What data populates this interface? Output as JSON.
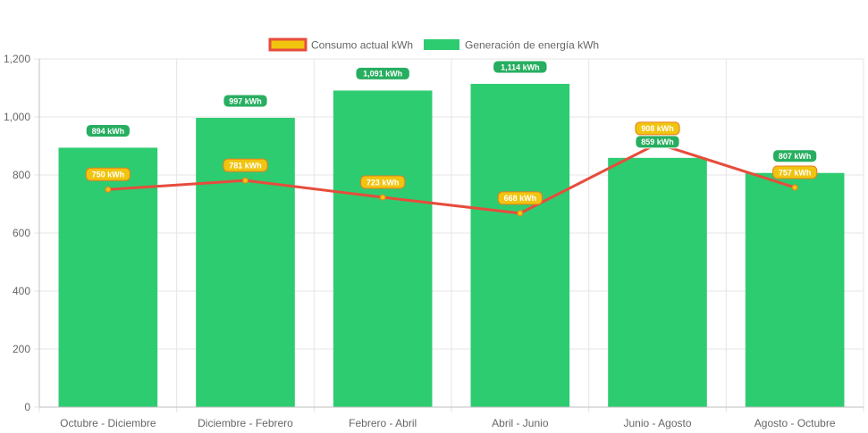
{
  "chart_data": {
    "type": "bar",
    "categories": [
      "Octubre - Diciembre",
      "Diciembre - Febrero",
      "Febrero - Abril",
      "Abril - Junio",
      "Junio - Agosto",
      "Agosto - Octubre"
    ],
    "series": [
      {
        "name": "Consumo actual kWh",
        "type": "line",
        "values": [
          750,
          781,
          723,
          668,
          908,
          757
        ],
        "labels": [
          "750 kWh",
          "781 kWh",
          "723 kWh",
          "668 kWh",
          "908 kWh",
          "757 kWh"
        ],
        "color": "#e74c3c",
        "fill": "#f1c40f"
      },
      {
        "name": "Generación de energía kWh",
        "type": "bar",
        "values": [
          894,
          997,
          1091,
          1114,
          859,
          807
        ],
        "labels": [
          "894 kWh",
          "997 kWh",
          "1,091 kWh",
          "1,114 kWh",
          "859 kWh",
          "807 kWh"
        ],
        "color": "#2ecc71"
      }
    ],
    "ylim": [
      0,
      1200
    ],
    "yticks": [
      "0",
      "200",
      "400",
      "600",
      "800",
      "1,000",
      "1,200"
    ],
    "ytick_values": [
      0,
      200,
      400,
      600,
      800,
      1000,
      1200
    ],
    "grid": true,
    "legend_position": "top-center"
  }
}
